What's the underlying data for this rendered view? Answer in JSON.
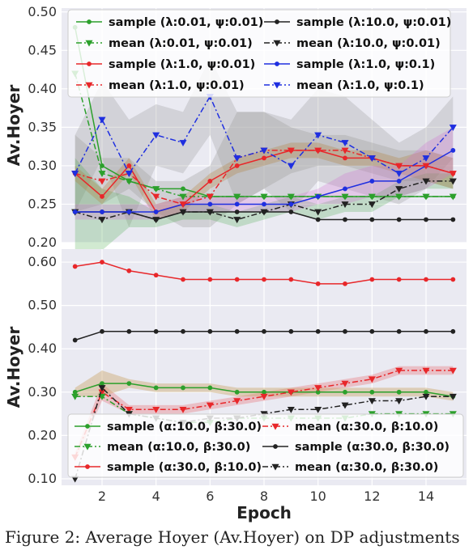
{
  "caption": "Figure 2: Average Hoyer (Av.Hoyer) on DP adjustments",
  "chart_data": [
    {
      "type": "line",
      "xlabel": "",
      "ylabel": "Av.Hoyer",
      "xlim": [
        0.5,
        15.5
      ],
      "ylim": [
        0.2,
        0.505
      ],
      "yticks": [
        0.2,
        0.25,
        0.3,
        0.35,
        0.4,
        0.45,
        0.5
      ],
      "ytick_labels": [
        "0.20",
        "0.25",
        "0.30",
        "0.35",
        "0.40",
        "0.45",
        "0.50"
      ],
      "xticks": [
        2,
        4,
        6,
        8,
        10,
        12,
        14
      ],
      "show_xtick_labels": false,
      "grid": true,
      "legend_position": "top",
      "legend_columns": 2,
      "x": [
        1,
        2,
        3,
        4,
        5,
        6,
        7,
        8,
        9,
        10,
        11,
        12,
        13,
        14,
        15
      ],
      "series": [
        {
          "name": "sample (λ:0.01, ψ:0.01)",
          "color": "#2ca02c",
          "dash": "solid",
          "marker": "circle",
          "values": [
            0.48,
            0.3,
            0.28,
            0.27,
            0.27,
            0.26,
            0.26,
            0.26,
            0.26,
            0.26,
            0.26,
            0.26,
            0.26,
            0.26,
            0.26
          ]
        },
        {
          "name": "sample (λ:10.0, ψ:0.01)",
          "color": "#222222",
          "dash": "solid",
          "marker": "circle",
          "values": [
            0.24,
            0.24,
            0.24,
            0.23,
            0.24,
            0.24,
            0.24,
            0.24,
            0.24,
            0.23,
            0.23,
            0.23,
            0.23,
            0.23,
            0.23
          ]
        },
        {
          "name": "mean (λ:0.01, ψ:0.01)",
          "color": "#2ca02c",
          "dash": "dashdot",
          "marker": "triangle",
          "values": [
            0.42,
            0.29,
            0.28,
            0.27,
            0.26,
            0.26,
            0.26,
            0.26,
            0.26,
            0.26,
            0.26,
            0.26,
            0.26,
            0.26,
            0.26
          ]
        },
        {
          "name": "mean (λ:10.0, ψ:0.01)",
          "color": "#222222",
          "dash": "dashdot",
          "marker": "triangle",
          "values": [
            0.24,
            0.23,
            0.24,
            0.23,
            0.24,
            0.24,
            0.23,
            0.24,
            0.25,
            0.24,
            0.25,
            0.25,
            0.27,
            0.28,
            0.28
          ]
        },
        {
          "name": "sample (λ:1.0, ψ:0.01)",
          "color": "#e8272a",
          "dash": "solid",
          "marker": "circle",
          "values": [
            0.29,
            0.26,
            0.3,
            0.24,
            0.25,
            0.28,
            0.3,
            0.31,
            0.32,
            0.32,
            0.31,
            0.31,
            0.3,
            0.3,
            0.29
          ]
        },
        {
          "name": "sample (λ:1.0, ψ:0.1)",
          "color": "#1f2fe0",
          "dash": "solid",
          "marker": "circle",
          "values": [
            0.24,
            0.24,
            0.24,
            0.24,
            0.25,
            0.25,
            0.25,
            0.25,
            0.25,
            0.26,
            0.27,
            0.28,
            0.28,
            0.3,
            0.32
          ]
        },
        {
          "name": "mean (λ:1.0, ψ:0.01)",
          "color": "#e8272a",
          "dash": "dashdot",
          "marker": "triangle",
          "values": [
            0.29,
            0.28,
            0.29,
            0.26,
            0.25,
            0.26,
            0.31,
            0.32,
            0.32,
            0.32,
            0.32,
            0.31,
            0.3,
            0.3,
            0.29
          ]
        },
        {
          "name": "mean (λ:1.0, ψ:0.1)",
          "color": "#1f2fe0",
          "dash": "dashdot",
          "marker": "triangle",
          "values": [
            0.29,
            0.36,
            0.29,
            0.34,
            0.33,
            0.39,
            0.31,
            0.32,
            0.3,
            0.34,
            0.33,
            0.31,
            0.29,
            0.31,
            0.35
          ]
        }
      ]
    },
    {
      "type": "line",
      "xlabel": "Epoch",
      "ylabel": "Av.Hoyer",
      "xlim": [
        0.5,
        15.5
      ],
      "ylim": [
        0.085,
        0.63
      ],
      "yticks": [
        0.1,
        0.2,
        0.3,
        0.4,
        0.5,
        0.6
      ],
      "ytick_labels": [
        "0.10",
        "0.20",
        "0.30",
        "0.40",
        "0.50",
        "0.60"
      ],
      "xticks": [
        2,
        4,
        6,
        8,
        10,
        12,
        14
      ],
      "xtick_labels": [
        "2",
        "4",
        "6",
        "8",
        "10",
        "12",
        "14"
      ],
      "show_xtick_labels": true,
      "grid": true,
      "legend_position": "bottom",
      "legend_columns": 2,
      "x": [
        1,
        2,
        3,
        4,
        5,
        6,
        7,
        8,
        9,
        10,
        11,
        12,
        13,
        14,
        15
      ],
      "series": [
        {
          "name": "sample (α:10.0, β:30.0)",
          "color": "#2ca02c",
          "dash": "solid",
          "marker": "circle",
          "values": [
            0.3,
            0.32,
            0.32,
            0.31,
            0.31,
            0.31,
            0.3,
            0.3,
            0.3,
            0.3,
            0.3,
            0.3,
            0.3,
            0.3,
            0.29
          ]
        },
        {
          "name": "mean (α:30.0, β:10.0)",
          "color": "#e8272a",
          "dash": "dashdot",
          "marker": "triangle",
          "values": [
            0.15,
            0.3,
            0.26,
            0.26,
            0.26,
            0.27,
            0.28,
            0.29,
            0.3,
            0.31,
            0.32,
            0.33,
            0.35,
            0.35,
            0.35
          ]
        },
        {
          "name": "mean (α:10.0, β:30.0)",
          "color": "#2ca02c",
          "dash": "dashdot",
          "marker": "triangle",
          "values": [
            0.29,
            0.29,
            0.25,
            0.24,
            0.23,
            0.23,
            0.24,
            0.24,
            0.24,
            0.24,
            0.24,
            0.25,
            0.25,
            0.25,
            0.25
          ]
        },
        {
          "name": "sample (α:30.0, β:30.0)",
          "color": "#222222",
          "dash": "solid",
          "marker": "circle",
          "values": [
            0.42,
            0.44,
            0.44,
            0.44,
            0.44,
            0.44,
            0.44,
            0.44,
            0.44,
            0.44,
            0.44,
            0.44,
            0.44,
            0.44,
            0.44
          ]
        },
        {
          "name": "sample (α:30.0, β:10.0)",
          "color": "#e8272a",
          "dash": "solid",
          "marker": "circle",
          "values": [
            0.59,
            0.6,
            0.58,
            0.57,
            0.56,
            0.56,
            0.56,
            0.56,
            0.56,
            0.55,
            0.55,
            0.56,
            0.56,
            0.56,
            0.56
          ]
        },
        {
          "name": "mean (α:30.0, β:30.0)",
          "color": "#222222",
          "dash": "dashdot",
          "marker": "triangle",
          "values": [
            0.1,
            0.31,
            0.25,
            0.24,
            0.23,
            0.24,
            0.24,
            0.25,
            0.26,
            0.26,
            0.27,
            0.28,
            0.28,
            0.29,
            0.29
          ]
        }
      ]
    }
  ]
}
